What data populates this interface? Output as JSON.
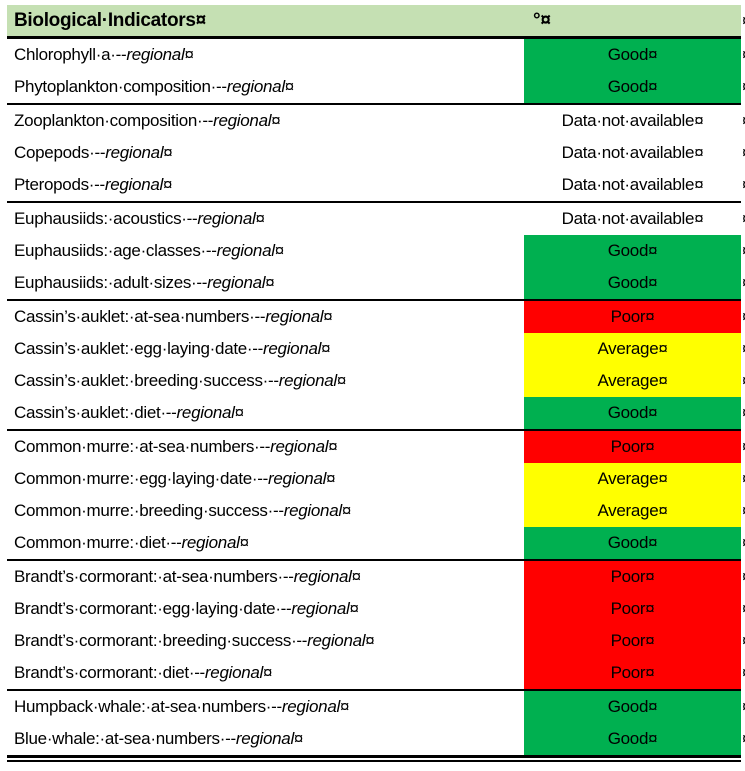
{
  "table": {
    "header": {
      "title": "Biological·Indicators",
      "status_symbol": "°"
    },
    "marks": {
      "cell_end": "¤",
      "row_end": "¤"
    },
    "colors": {
      "header_bg": "#C5E0B3",
      "good": "#00B050",
      "average": "#FFFF00",
      "poor": "#FF0000",
      "na": "transparent",
      "border": "#000000"
    },
    "status_labels": {
      "good": "Good",
      "average": "Average",
      "poor": "Poor",
      "na": "Data·not·available"
    },
    "sections": [
      {
        "rows": [
          {
            "text": "Chlorophyll·a·--",
            "italic": "regional",
            "status": "Good",
            "status_key": "good"
          },
          {
            "text": "Phytoplankton·composition·--",
            "italic": "regional",
            "status": "Good",
            "status_key": "good"
          }
        ]
      },
      {
        "rows": [
          {
            "text": "Zooplankton·composition·--",
            "italic": "regional",
            "status": "Data·not·available",
            "status_key": "na"
          },
          {
            "text": "Copepods·--",
            "italic": "regional",
            "status": "Data·not·available",
            "status_key": "na"
          },
          {
            "text": "Pteropods·--",
            "italic": "regional",
            "status": "Data·not·available",
            "status_key": "na"
          }
        ]
      },
      {
        "rows": [
          {
            "text": "Euphausiids:·acoustics·--",
            "italic": "regional",
            "status": "Data·not·available",
            "status_key": "na"
          },
          {
            "text": "Euphausiids:·age·classes·--",
            "italic": "regional",
            "status": "Good",
            "status_key": "good"
          },
          {
            "text": "Euphausiids:·adult·sizes·--",
            "italic": "regional",
            "status": "Good",
            "status_key": "good"
          }
        ]
      },
      {
        "rows": [
          {
            "text": "Cassin’s·auklet:·at-sea·numbers·--",
            "italic": "regional",
            "status": "Poor",
            "status_key": "poor"
          },
          {
            "text": "Cassin’s·auklet:·egg·laying·date·--",
            "italic": "regional",
            "status": "Average",
            "status_key": "average"
          },
          {
            "text": "Cassin’s·auklet:·breeding·success·--",
            "italic": "regional",
            "status": "Average",
            "status_key": "average"
          },
          {
            "text": "Cassin’s·auklet:·diet·--",
            "italic": "regional",
            "status": "Good",
            "status_key": "good"
          }
        ]
      },
      {
        "rows": [
          {
            "text": "Common·murre:·at-sea·numbers·--",
            "italic": "regional",
            "status": "Poor",
            "status_key": "poor"
          },
          {
            "text": "Common·murre:·egg·laying·date·--",
            "italic": "regional",
            "status": "Average",
            "status_key": "average"
          },
          {
            "text": "Common·murre:·breeding·success·--",
            "italic": "regional",
            "status": "Average",
            "status_key": "average"
          },
          {
            "text": "Common·murre:·diet·--",
            "italic": "regional",
            "status": "Good",
            "status_key": "good"
          }
        ]
      },
      {
        "rows": [
          {
            "text": "Brandt’s·cormorant:·at-sea·numbers·--",
            "italic": "regional",
            "status": "Poor",
            "status_key": "poor"
          },
          {
            "text": "Brandt’s·cormorant:·egg·laying·date·--",
            "italic": "regional",
            "status": "Poor",
            "status_key": "poor"
          },
          {
            "text": "Brandt’s·cormorant:·breeding·success·--",
            "italic": "regional",
            "status": "Poor",
            "status_key": "poor"
          },
          {
            "text": "Brandt’s·cormorant:·diet·--",
            "italic": "regional",
            "status": "Poor",
            "status_key": "poor"
          }
        ]
      },
      {
        "rows": [
          {
            "text": "Humpback·whale:·at-sea·numbers·--",
            "italic": "regional",
            "status": "Good",
            "status_key": "good"
          },
          {
            "text": "Blue·whale:·at-sea·numbers·--",
            "italic": "regional",
            "status": "Good",
            "status_key": "good"
          }
        ]
      }
    ]
  }
}
